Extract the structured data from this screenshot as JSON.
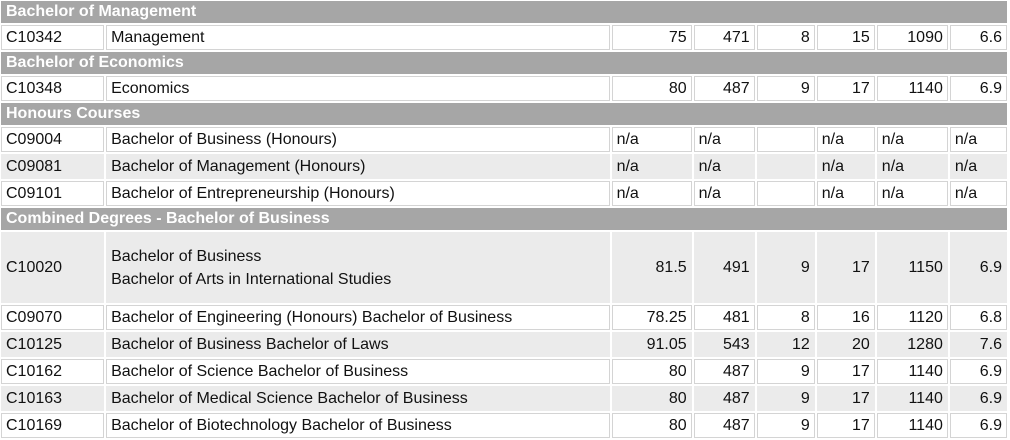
{
  "sections": [
    {
      "title": "Bachelor of Management",
      "rows": [
        {
          "code": "C10342",
          "name": [
            "Management"
          ],
          "values": [
            "75",
            "471",
            "8",
            "15",
            "1090",
            "6.6"
          ]
        }
      ]
    },
    {
      "title": "Bachelor of Economics",
      "rows": [
        {
          "code": "C10348",
          "name": [
            "Economics"
          ],
          "values": [
            "80",
            "487",
            "9",
            "17",
            "1140",
            "6.9"
          ]
        }
      ]
    },
    {
      "title": "Honours Courses",
      "rows": [
        {
          "code": "C09004",
          "name": [
            "Bachelor of Business (Honours)"
          ],
          "values": [
            "n/a",
            "n/a",
            null,
            "n/a",
            "n/a",
            "n/a"
          ]
        },
        {
          "code": "C09081",
          "name": [
            "Bachelor of Management (Honours)"
          ],
          "values": [
            "n/a",
            "n/a",
            null,
            "n/a",
            "n/a",
            "n/a"
          ]
        },
        {
          "code": "C09101",
          "name": [
            "Bachelor of Entrepreneurship (Honours)"
          ],
          "values": [
            "n/a",
            "n/a",
            null,
            "n/a",
            "n/a",
            "n/a"
          ]
        }
      ]
    },
    {
      "title": "Combined Degrees - Bachelor of Business",
      "rows": [
        {
          "code": "C10020",
          "name": [
            "Bachelor of Business",
            "Bachelor of Arts in International Studies"
          ],
          "values": [
            "81.5",
            "491",
            "9",
            "17",
            "1150",
            "6.9"
          ]
        },
        {
          "code": "C09070",
          "name": [
            "Bachelor of Engineering (Honours) Bachelor of Business"
          ],
          "values": [
            "78.25",
            "481",
            "8",
            "16",
            "1120",
            "6.8"
          ]
        },
        {
          "code": "C10125",
          "name": [
            "Bachelor of Business Bachelor of Laws"
          ],
          "values": [
            "91.05",
            "543",
            "12",
            "20",
            "1280",
            "7.6"
          ]
        },
        {
          "code": "C10162",
          "name": [
            "Bachelor of Science Bachelor of Business"
          ],
          "values": [
            "80",
            "487",
            "9",
            "17",
            "1140",
            "6.9"
          ]
        },
        {
          "code": "C10163",
          "name": [
            "Bachelor of Medical Science Bachelor of Business"
          ],
          "values": [
            "80",
            "487",
            "9",
            "17",
            "1140",
            "6.9"
          ]
        },
        {
          "code": "C10169",
          "name": [
            "Bachelor of Biotechnology Bachelor of Business"
          ],
          "values": [
            "80",
            "487",
            "9",
            "17",
            "1140",
            "6.9"
          ]
        }
      ]
    }
  ]
}
